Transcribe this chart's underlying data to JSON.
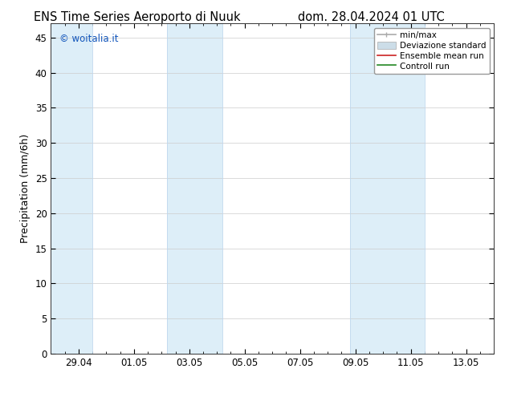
{
  "title_left": "ENS Time Series Aeroporto di Nuuk",
  "title_right": "dom. 28.04.2024 01 UTC",
  "ylabel": "Precipitation (mm/6h)",
  "watermark": "© woitalia.it",
  "watermark_color": "#1155bb",
  "ylim": [
    0,
    47
  ],
  "yticks": [
    0,
    5,
    10,
    15,
    20,
    25,
    30,
    35,
    40,
    45
  ],
  "xlim": [
    0,
    16
  ],
  "xtick_labels": [
    "29.04",
    "01.05",
    "03.05",
    "05.05",
    "07.05",
    "09.05",
    "11.05",
    "13.05"
  ],
  "xtick_positions": [
    1,
    3,
    5,
    7,
    9,
    11,
    13,
    15
  ],
  "shaded_bands": [
    {
      "xmin": -0.1,
      "xmax": 1.5
    },
    {
      "xmin": 4.2,
      "xmax": 6.2
    },
    {
      "xmin": 10.8,
      "xmax": 13.5
    }
  ],
  "band_color": "#ddeef8",
  "band_edge_color": "#c0d8ee",
  "legend_entries": [
    {
      "label": "min/max",
      "color": "#aaaaaa",
      "lw": 1.2
    },
    {
      "label": "Deviazione standard",
      "color": "#ccdde8",
      "lw": 6
    },
    {
      "label": "Ensemble mean run",
      "color": "#cc2222",
      "lw": 1.2
    },
    {
      "label": "Controll run",
      "color": "#228822",
      "lw": 1.2
    }
  ],
  "bg_color": "#ffffff",
  "grid_color": "#cccccc",
  "title_fontsize": 10.5,
  "tick_fontsize": 8.5,
  "label_fontsize": 9
}
